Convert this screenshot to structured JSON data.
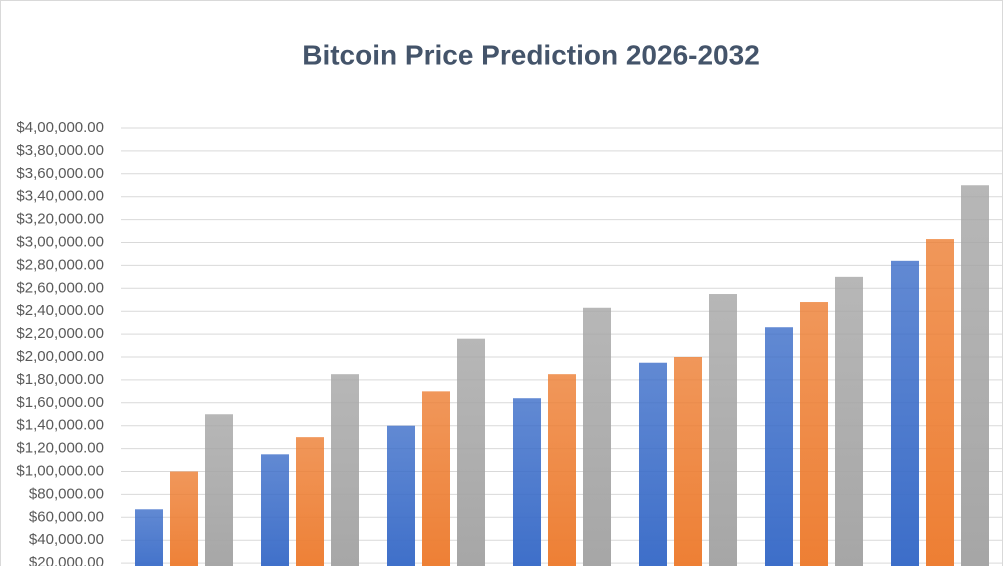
{
  "chart_data": {
    "type": "bar",
    "title": "Bitcoin Price Prediction 2026-2032",
    "categories": [
      null,
      null,
      null,
      null,
      null,
      null,
      null
    ],
    "series": [
      {
        "color": "#3a6cc8",
        "values": [
          67000,
          115000,
          140000,
          164000,
          195000,
          226000,
          284000
        ]
      },
      {
        "color": "#ed7d31",
        "values": [
          100000,
          130000,
          170000,
          185000,
          200000,
          248000,
          303000
        ]
      },
      {
        "color": "#a5a5a5",
        "values": [
          150000,
          185000,
          216000,
          243000,
          255000,
          270000,
          350000
        ]
      }
    ],
    "ylim": [
      0,
      400000
    ],
    "yticks": [
      {
        "value": 20000,
        "label": "$20,000.00"
      },
      {
        "value": 40000,
        "label": "$40,000.00"
      },
      {
        "value": 60000,
        "label": "$60,000.00"
      },
      {
        "value": 80000,
        "label": "$80,000.00"
      },
      {
        "value": 100000,
        "label": "$1,00,000.00"
      },
      {
        "value": 120000,
        "label": "$1,20,000.00"
      },
      {
        "value": 140000,
        "label": "$1,40,000.00"
      },
      {
        "value": 160000,
        "label": "$1,60,000.00"
      },
      {
        "value": 180000,
        "label": "$1,80,000.00"
      },
      {
        "value": 200000,
        "label": "$2,00,000.00"
      },
      {
        "value": 220000,
        "label": "$2,20,000.00"
      },
      {
        "value": 240000,
        "label": "$2,40,000.00"
      },
      {
        "value": 260000,
        "label": "$2,60,000.00"
      },
      {
        "value": 280000,
        "label": "$2,80,000.00"
      },
      {
        "value": 300000,
        "label": "$3,00,000.00"
      },
      {
        "value": 320000,
        "label": "$3,20,000.00"
      },
      {
        "value": 340000,
        "label": "$3,40,000.00"
      },
      {
        "value": 360000,
        "label": "$3,60,000.00"
      },
      {
        "value": 380000,
        "label": "$3,80,000.00"
      },
      {
        "value": 400000,
        "label": "$4,00,000.00"
      }
    ],
    "grid": true
  }
}
